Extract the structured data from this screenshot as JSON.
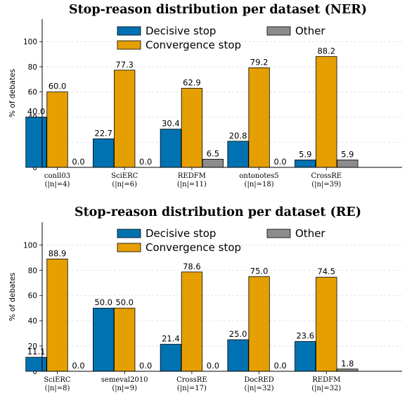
{
  "chart_data": [
    {
      "type": "bar",
      "title": "Stop-reason distribution per dataset (NER)",
      "ylabel": "% of debates",
      "ylim": [
        0,
        118
      ],
      "yticks": [
        0,
        20,
        40,
        60,
        80,
        100
      ],
      "grid": true,
      "legend_position": "top",
      "categories": [
        {
          "name": "conll03",
          "n": "(|n|=4)"
        },
        {
          "name": "SciERC",
          "n": "(|n|=6)"
        },
        {
          "name": "REDFM",
          "n": "(|n|=11)"
        },
        {
          "name": "ontonotes5",
          "n": "(|n|=18)"
        },
        {
          "name": "CrossRE",
          "n": "(|n|=39)"
        }
      ],
      "series": [
        {
          "name": "Decisive stop",
          "color": "#0072b2",
          "values": [
            40.0,
            22.7,
            30.4,
            20.8,
            5.9
          ],
          "labels": [
            "40.0",
            "22.7",
            "30.4",
            "20.8",
            "5.9"
          ]
        },
        {
          "name": "Convergence stop",
          "color": "#e69f00",
          "values": [
            60.0,
            77.3,
            62.9,
            79.2,
            88.2
          ],
          "labels": [
            "60.0",
            "77.3",
            "62.9",
            "79.2",
            "88.2"
          ]
        },
        {
          "name": "Other",
          "color": "#8c8c8c",
          "values": [
            0.0,
            0.0,
            6.5,
            0.0,
            5.9
          ],
          "labels": [
            "0.0",
            "0.0",
            "6.5",
            "0.0",
            "5.9"
          ]
        }
      ]
    },
    {
      "type": "bar",
      "title": "Stop-reason distribution per dataset (RE)",
      "ylabel": "% of debates",
      "ylim": [
        0,
        118
      ],
      "yticks": [
        0,
        20,
        40,
        60,
        80,
        100
      ],
      "grid": true,
      "legend_position": "top",
      "categories": [
        {
          "name": "SciERC",
          "n": "(|n|=8)"
        },
        {
          "name": "semeval2010",
          "n": "(|n|=9)"
        },
        {
          "name": "CrossRE",
          "n": "(|n|=17)"
        },
        {
          "name": "DocRED",
          "n": "(|n|=32)"
        },
        {
          "name": "REDFM",
          "n": "(|n|=32)"
        }
      ],
      "series": [
        {
          "name": "Decisive stop",
          "color": "#0072b2",
          "values": [
            11.1,
            50.0,
            21.4,
            25.0,
            23.6
          ],
          "labels": [
            "11.1",
            "50.0",
            "21.4",
            "25.0",
            "23.6"
          ]
        },
        {
          "name": "Convergence stop",
          "color": "#e69f00",
          "values": [
            88.9,
            50.0,
            78.6,
            75.0,
            74.5
          ],
          "labels": [
            "88.9",
            "50.0",
            "78.6",
            "75.0",
            "74.5"
          ]
        },
        {
          "name": "Other",
          "color": "#8c8c8c",
          "values": [
            0.0,
            0.0,
            0.0,
            0.0,
            1.8
          ],
          "labels": [
            "0.0",
            "0.0",
            "0.0",
            "0.0",
            "1.8"
          ]
        }
      ]
    }
  ]
}
